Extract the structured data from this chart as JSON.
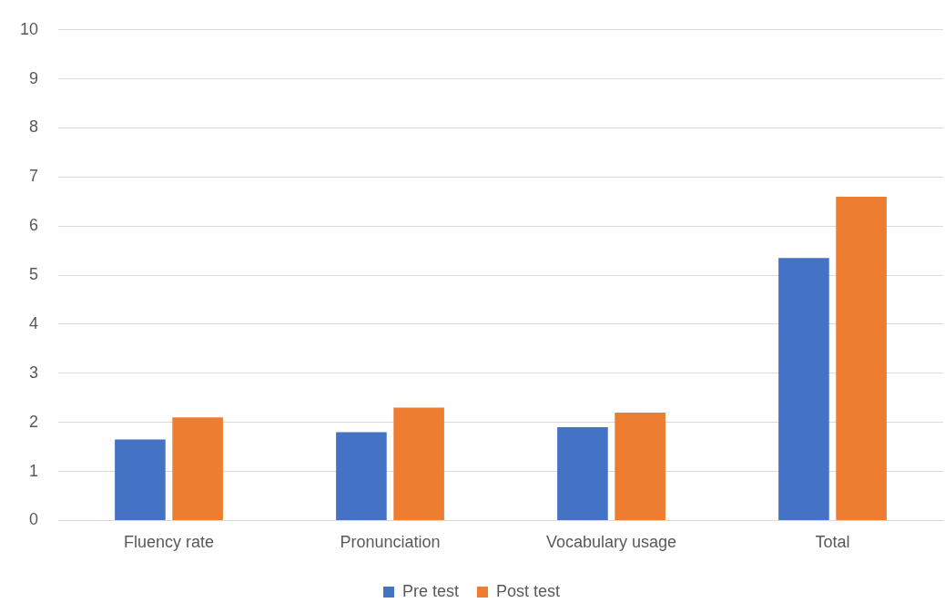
{
  "chart_data": {
    "type": "bar",
    "categories": [
      "Fluency rate",
      "Pronunciation",
      "Vocabulary usage",
      "Total"
    ],
    "series": [
      {
        "name": "Pre test",
        "color": "#4472c4",
        "values": [
          1.65,
          1.8,
          1.9,
          5.35
        ]
      },
      {
        "name": "Post test",
        "color": "#ed7d31",
        "values": [
          2.1,
          2.3,
          2.2,
          6.6
        ]
      }
    ],
    "ylim": [
      0,
      10
    ],
    "yticks": [
      0,
      1,
      2,
      3,
      4,
      5,
      6,
      7,
      8,
      9,
      10
    ],
    "grid": "y",
    "legend": "bottom"
  }
}
